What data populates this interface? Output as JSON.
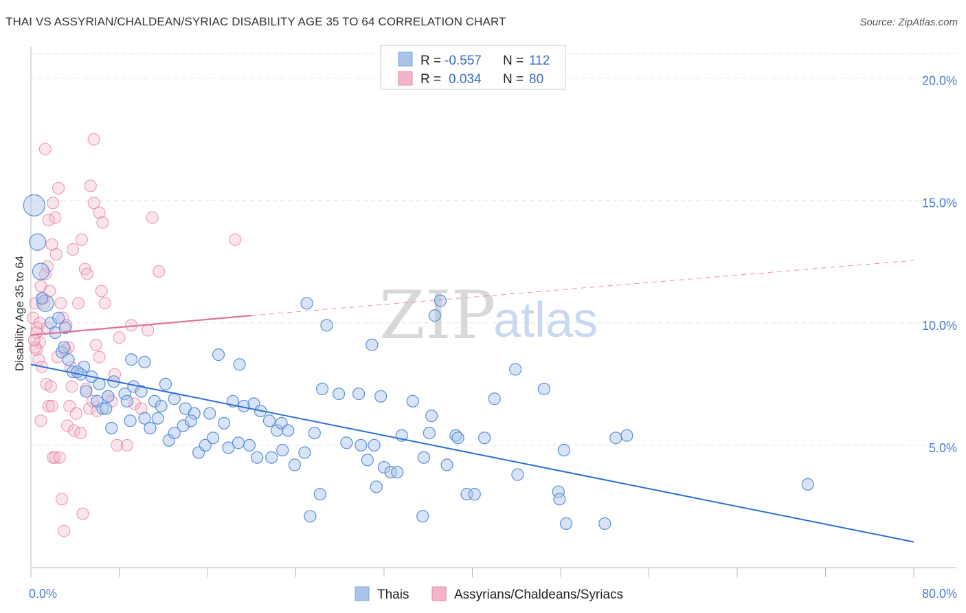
{
  "header": {
    "title": "THAI VS ASSYRIAN/CHALDEAN/SYRIAC DISABILITY AGE 35 TO 64 CORRELATION CHART",
    "source": "Source: ZipAtlas.com"
  },
  "watermark": {
    "zip": "ZIP",
    "atlas": "atlas"
  },
  "legend_top": {
    "rows": [
      {
        "r_label": "R =",
        "r_value": "-0.557",
        "n_label": "N =",
        "n_value": "112",
        "color": "#a8c4ea"
      },
      {
        "r_label": "R =",
        "r_value": "0.034",
        "n_label": "N =",
        "n_value": "80",
        "color": "#f4b4c8"
      }
    ]
  },
  "legend_bottom": {
    "items": [
      {
        "label": "Thais",
        "color": "#a8c4ea"
      },
      {
        "label": "Assyrians/Chaldeans/Syriacs",
        "color": "#f4b4c8"
      }
    ]
  },
  "chart_data": {
    "type": "scatter",
    "title": "THAI VS ASSYRIAN/CHALDEAN/SYRIAC DISABILITY AGE 35 TO 64 CORRELATION CHART",
    "ylabel": "Disability Age 35 to 64",
    "xlabel": "",
    "xlim": [
      0,
      80
    ],
    "ylim": [
      0,
      21
    ],
    "x_tick_labels": [
      "0.0%",
      "80.0%"
    ],
    "y_ticks": [
      5,
      10,
      15,
      20
    ],
    "y_tick_labels": [
      "5.0%",
      "10.0%",
      "15.0%",
      "20.0%"
    ],
    "grid": true,
    "colors": {
      "thais": "#5b8fd8",
      "thais_fill": "#a8c4ea",
      "assyrians": "#e06a92",
      "assyrians_fill": "#f4b4c8",
      "thais_line": "#2a6fd0",
      "assyrians_line": "#e0709a"
    },
    "series": [
      {
        "name": "Thais",
        "trend": {
          "x0": 0,
          "y0": 8.3,
          "x1": 80,
          "y1": 1.05
        },
        "points": [
          [
            0.3,
            14.8,
            3
          ],
          [
            0.6,
            13.3,
            2
          ],
          [
            0.9,
            12.1,
            2
          ],
          [
            1.3,
            10.8,
            2
          ],
          [
            1.8,
            10.0,
            1
          ],
          [
            2.2,
            9.6,
            1
          ],
          [
            3.1,
            9.8,
            1
          ],
          [
            2.8,
            8.8,
            1
          ],
          [
            3.4,
            8.5,
            1
          ],
          [
            4.8,
            8.2,
            1
          ],
          [
            3.8,
            8.0,
            1
          ],
          [
            4.5,
            7.9,
            1
          ],
          [
            5.5,
            7.8,
            1
          ],
          [
            6.2,
            7.5,
            1
          ],
          [
            7.5,
            7.6,
            1
          ],
          [
            8.5,
            7.1,
            1
          ],
          [
            9.3,
            7.4,
            1
          ],
          [
            10.0,
            7.2,
            1
          ],
          [
            11.2,
            6.8,
            1
          ],
          [
            12.2,
            7.5,
            1
          ],
          [
            5.0,
            7.2,
            1
          ],
          [
            6.0,
            6.8,
            1
          ],
          [
            6.5,
            6.5,
            1
          ],
          [
            7.0,
            7.0,
            1
          ],
          [
            8.7,
            6.8,
            1
          ],
          [
            9.0,
            6.0,
            1
          ],
          [
            10.3,
            6.1,
            1
          ],
          [
            11.8,
            6.6,
            1
          ],
          [
            13.0,
            6.9,
            1
          ],
          [
            14.0,
            6.5,
            1
          ],
          [
            14.8,
            6.3,
            1
          ],
          [
            16.2,
            6.3,
            1
          ],
          [
            17.5,
            5.9,
            1
          ],
          [
            18.3,
            6.8,
            1
          ],
          [
            19.3,
            6.6,
            1
          ],
          [
            20.2,
            6.7,
            1
          ],
          [
            20.8,
            6.4,
            1
          ],
          [
            21.6,
            6.0,
            1
          ],
          [
            22.3,
            5.6,
            1
          ],
          [
            22.7,
            5.9,
            1
          ],
          [
            23.3,
            5.6,
            1
          ],
          [
            7.3,
            5.7,
            1
          ],
          [
            10.8,
            5.7,
            1
          ],
          [
            11.5,
            6.1,
            1
          ],
          [
            12.5,
            5.2,
            1
          ],
          [
            13.0,
            5.5,
            1
          ],
          [
            13.8,
            5.8,
            1
          ],
          [
            14.5,
            6.0,
            1
          ],
          [
            15.2,
            4.7,
            1
          ],
          [
            15.8,
            5.0,
            1
          ],
          [
            16.5,
            5.3,
            1
          ],
          [
            17.9,
            4.9,
            1
          ],
          [
            18.8,
            5.1,
            1
          ],
          [
            19.8,
            5.0,
            1
          ],
          [
            20.5,
            4.5,
            1
          ],
          [
            21.8,
            4.5,
            1
          ],
          [
            22.8,
            4.8,
            1
          ],
          [
            23.9,
            4.2,
            1
          ],
          [
            24.8,
            4.7,
            1
          ],
          [
            25.7,
            5.5,
            1
          ],
          [
            26.4,
            7.3,
            1
          ],
          [
            27.9,
            7.1,
            1
          ],
          [
            28.6,
            5.1,
            1
          ],
          [
            29.9,
            5.0,
            1
          ],
          [
            30.5,
            4.4,
            1
          ],
          [
            31.1,
            5.0,
            1
          ],
          [
            32.0,
            4.1,
            1
          ],
          [
            32.6,
            3.9,
            1
          ],
          [
            33.2,
            3.9,
            1
          ],
          [
            31.3,
            3.3,
            1
          ],
          [
            26.2,
            3.0,
            1
          ],
          [
            25.3,
            2.1,
            1
          ],
          [
            29.7,
            7.1,
            1
          ],
          [
            31.7,
            7.0,
            1
          ],
          [
            33.6,
            5.4,
            1
          ],
          [
            34.6,
            6.8,
            1
          ],
          [
            35.6,
            4.5,
            1
          ],
          [
            36.1,
            5.5,
            1
          ],
          [
            36.3,
            6.2,
            1
          ],
          [
            37.7,
            4.2,
            1
          ],
          [
            38.5,
            5.4,
            1
          ],
          [
            38.7,
            5.3,
            1
          ],
          [
            39.5,
            3.0,
            1
          ],
          [
            40.2,
            3.0,
            1
          ],
          [
            41.1,
            5.3,
            1
          ],
          [
            42.0,
            6.9,
            1
          ],
          [
            43.9,
            8.1,
            1
          ],
          [
            44.1,
            3.8,
            1
          ],
          [
            46.5,
            7.3,
            1
          ],
          [
            47.8,
            3.1,
            1
          ],
          [
            47.9,
            2.8,
            1
          ],
          [
            48.3,
            4.8,
            1
          ],
          [
            48.5,
            1.8,
            1
          ],
          [
            52.0,
            1.8,
            1
          ],
          [
            53.0,
            5.3,
            1
          ],
          [
            54.0,
            5.4,
            1
          ],
          [
            70.4,
            3.4,
            1
          ],
          [
            36.6,
            10.3,
            1
          ],
          [
            37.1,
            10.9,
            1
          ],
          [
            25.0,
            10.8,
            1
          ],
          [
            26.8,
            9.9,
            1
          ],
          [
            30.9,
            9.1,
            1
          ],
          [
            17.0,
            8.7,
            1
          ],
          [
            18.9,
            8.3,
            1
          ],
          [
            9.1,
            8.5,
            1
          ],
          [
            10.3,
            8.4,
            1
          ],
          [
            35.5,
            2.1,
            1
          ],
          [
            2.5,
            10.2,
            1
          ],
          [
            1.0,
            11.0,
            1
          ],
          [
            3.0,
            9.0,
            1
          ],
          [
            4.2,
            8.0,
            1
          ],
          [
            6.8,
            6.5,
            1
          ]
        ]
      },
      {
        "name": "Assyrians/Chaldeans/Syriacs",
        "trend": {
          "x0": 0,
          "y0": 9.5,
          "x1": 20,
          "y1": 10.3,
          "dash_to_x": 80,
          "dash_to_y": 12.55
        },
        "points": [
          [
            0.2,
            10.2
          ],
          [
            0.4,
            10.8
          ],
          [
            0.6,
            9.8
          ],
          [
            0.8,
            9.2
          ],
          [
            0.5,
            8.9
          ],
          [
            0.7,
            8.5
          ],
          [
            0.4,
            9.0
          ],
          [
            0.9,
            11.5
          ],
          [
            1.1,
            11.0
          ],
          [
            1.3,
            12.0
          ],
          [
            1.5,
            12.3
          ],
          [
            1.2,
            10.8
          ],
          [
            1.7,
            11.3
          ],
          [
            1.9,
            13.2
          ],
          [
            2.2,
            14.3
          ],
          [
            2.0,
            14.9
          ],
          [
            2.5,
            15.5
          ],
          [
            1.3,
            17.1
          ],
          [
            1.6,
            14.2
          ],
          [
            2.3,
            12.8
          ],
          [
            2.7,
            10.8
          ],
          [
            2.9,
            10.2
          ],
          [
            3.2,
            9.9
          ],
          [
            3.4,
            9.0
          ],
          [
            3.6,
            8.2
          ],
          [
            3.8,
            13.0
          ],
          [
            4.3,
            10.8
          ],
          [
            4.6,
            13.4
          ],
          [
            4.9,
            12.2
          ],
          [
            5.1,
            12.0
          ],
          [
            5.4,
            15.6
          ],
          [
            5.7,
            14.9
          ],
          [
            5.9,
            9.1
          ],
          [
            6.2,
            8.6
          ],
          [
            6.4,
            11.3
          ],
          [
            6.2,
            14.5
          ],
          [
            5.7,
            17.5
          ],
          [
            6.5,
            14.1
          ],
          [
            6.7,
            10.8
          ],
          [
            7.0,
            7.0
          ],
          [
            7.3,
            6.8
          ],
          [
            7.6,
            7.9
          ],
          [
            7.8,
            5.0
          ],
          [
            8.0,
            9.4
          ],
          [
            8.7,
            5.0
          ],
          [
            9.1,
            9.9
          ],
          [
            9.4,
            6.7
          ],
          [
            10.0,
            6.5
          ],
          [
            10.6,
            9.7
          ],
          [
            11.0,
            14.3
          ],
          [
            11.6,
            12.1
          ],
          [
            18.5,
            13.4
          ],
          [
            0.5,
            9.6
          ],
          [
            0.8,
            10.0
          ],
          [
            1.0,
            8.2
          ],
          [
            1.4,
            7.5
          ],
          [
            1.6,
            6.6
          ],
          [
            1.8,
            7.4
          ],
          [
            1.9,
            6.6
          ],
          [
            2.0,
            4.5
          ],
          [
            2.2,
            4.5
          ],
          [
            2.6,
            4.5
          ],
          [
            2.8,
            2.8
          ],
          [
            3.0,
            1.5
          ],
          [
            3.3,
            5.8
          ],
          [
            3.5,
            6.6
          ],
          [
            3.7,
            7.4
          ],
          [
            3.9,
            5.6
          ],
          [
            4.1,
            6.3
          ],
          [
            4.5,
            5.5
          ],
          [
            4.7,
            2.2
          ],
          [
            5.0,
            7.3
          ],
          [
            5.3,
            6.5
          ],
          [
            5.6,
            6.8
          ],
          [
            6.0,
            6.4
          ],
          [
            0.3,
            9.3
          ],
          [
            0.9,
            6.0
          ],
          [
            1.5,
            9.8
          ],
          [
            2.4,
            8.6
          ],
          [
            3.1,
            8.9
          ]
        ]
      }
    ]
  }
}
